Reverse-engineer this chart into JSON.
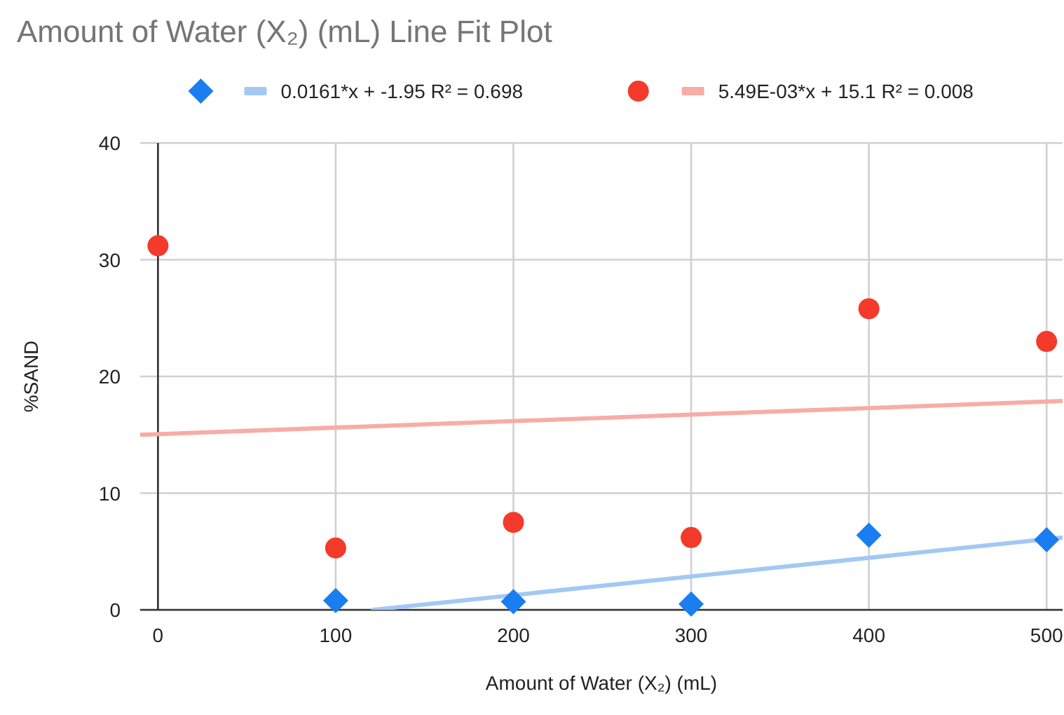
{
  "chart_data": {
    "type": "scatter",
    "title": "Amount of Water (X₂) (mL) Line Fit Plot",
    "xlabel": "Amount of Water (X₂) (mL)",
    "ylabel": "%SAND",
    "xlim": [
      -10,
      509
    ],
    "xticks": [
      0,
      100,
      200,
      300,
      400,
      500
    ],
    "ylim": [
      0,
      40
    ],
    "yticks": [
      0,
      10,
      20,
      30,
      40
    ],
    "grid": true,
    "legend": "top",
    "series": [
      {
        "marker": "diamond",
        "color": "#1a7ef0",
        "x": [
          100,
          200,
          300,
          400,
          500
        ],
        "values": [
          0.8,
          0.7,
          0.5,
          6.4,
          6.0
        ]
      },
      {
        "type": "line",
        "name": "0.0161*x + -1.95 R² = 0.698",
        "color": "#a4c8f4",
        "x": [
          121,
          509
        ],
        "values": [
          0,
          6.2
        ]
      },
      {
        "marker": "circle",
        "color": "#f43a2a",
        "x": [
          0,
          100,
          200,
          300,
          400,
          500
        ],
        "values": [
          31.2,
          5.3,
          7.5,
          6.2,
          25.8,
          23.0
        ]
      },
      {
        "type": "line",
        "name": "5.49E-03*x + 15.1 R² = 0.008",
        "color": "#f8aca6",
        "x": [
          -10,
          509
        ],
        "values": [
          15.0,
          17.9
        ]
      }
    ]
  }
}
